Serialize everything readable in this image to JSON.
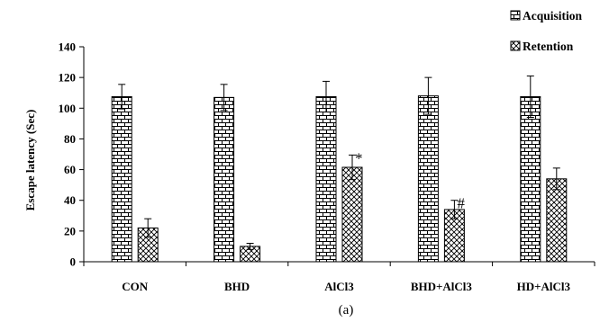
{
  "chart_data": {
    "type": "bar",
    "title": "",
    "caption": "(a)",
    "xlabel": "",
    "ylabel": "Escape latency (Sec)",
    "ylim": [
      0,
      140
    ],
    "yticks": [
      0,
      20,
      40,
      60,
      80,
      100,
      120,
      140
    ],
    "grid": false,
    "legend_position": "top-right",
    "categories": [
      "CON",
      "BHD",
      "AlCl3",
      "BHD+AlCl3",
      "HD+AlCl3"
    ],
    "series": [
      {
        "name": "Acquisition",
        "pattern": "brick",
        "values": [
          107.5,
          107,
          107.5,
          108,
          107.5
        ],
        "errors": [
          8,
          8.5,
          10,
          12,
          13.5
        ]
      },
      {
        "name": "Retention",
        "pattern": "crosshatch",
        "values": [
          22,
          10,
          61.5,
          34,
          54
        ],
        "errors": [
          6,
          2,
          8,
          6,
          7
        ]
      }
    ],
    "annotations": [
      {
        "category": "AlCl3",
        "series": "Retention",
        "text": "*"
      },
      {
        "category": "BHD+AlCl3",
        "series": "Retention",
        "text": "#"
      }
    ]
  }
}
